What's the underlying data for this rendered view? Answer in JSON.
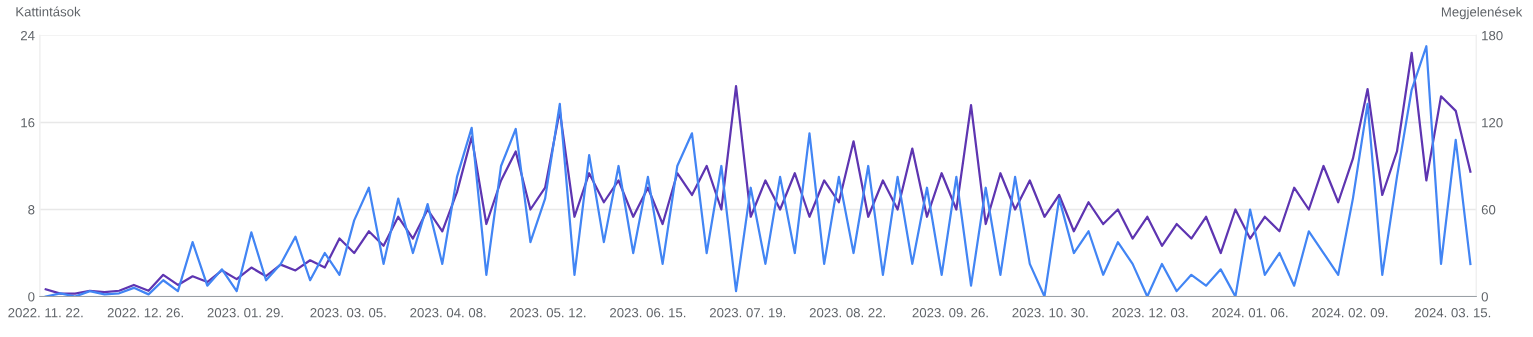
{
  "chart_data": {
    "type": "line",
    "ylabel": "Kattintások",
    "y2label": "Megjelenések",
    "x": [
      "2022-11-22",
      "2022-11-27",
      "2022-12-02",
      "2022-12-07",
      "2022-12-12",
      "2022-12-17",
      "2022-12-22",
      "2022-12-27",
      "2023-01-01",
      "2023-01-06",
      "2023-01-11",
      "2023-01-16",
      "2023-01-21",
      "2023-01-26",
      "2023-01-31",
      "2023-02-05",
      "2023-02-10",
      "2023-02-15",
      "2023-02-20",
      "2023-02-25",
      "2023-03-02",
      "2023-03-07",
      "2023-03-12",
      "2023-03-17",
      "2023-03-22",
      "2023-03-27",
      "2023-04-01",
      "2023-04-06",
      "2023-04-11",
      "2023-04-16",
      "2023-04-21",
      "2023-04-26",
      "2023-05-01",
      "2023-05-06",
      "2023-05-11",
      "2023-05-16",
      "2023-05-21",
      "2023-05-26",
      "2023-05-31",
      "2023-06-05",
      "2023-06-10",
      "2023-06-15",
      "2023-06-20",
      "2023-06-25",
      "2023-06-30",
      "2023-07-05",
      "2023-07-10",
      "2023-07-15",
      "2023-07-20",
      "2023-07-25",
      "2023-07-30",
      "2023-08-04",
      "2023-08-09",
      "2023-08-14",
      "2023-08-19",
      "2023-08-24",
      "2023-08-29",
      "2023-09-03",
      "2023-09-08",
      "2023-09-13",
      "2023-09-18",
      "2023-09-23",
      "2023-09-28",
      "2023-10-03",
      "2023-10-08",
      "2023-10-13",
      "2023-10-18",
      "2023-10-23",
      "2023-10-28",
      "2023-11-02",
      "2023-11-07",
      "2023-11-12",
      "2023-11-17",
      "2023-11-22",
      "2023-11-27",
      "2023-12-02",
      "2023-12-07",
      "2023-12-12",
      "2023-12-17",
      "2023-12-22",
      "2023-12-27",
      "2024-01-01",
      "2024-01-06",
      "2024-01-11",
      "2024-01-16",
      "2024-01-21",
      "2024-01-26",
      "2024-01-31",
      "2024-02-05",
      "2024-02-10",
      "2024-02-15",
      "2024-02-20",
      "2024-02-25",
      "2024-03-01",
      "2024-03-06",
      "2024-03-11",
      "2024-03-16",
      "2024-03-21"
    ],
    "series": [
      {
        "color": "#5e35b1",
        "axis": "y2",
        "values": [
          5,
          2,
          2,
          4,
          3,
          4,
          8,
          4,
          15,
          8,
          14,
          10,
          18,
          12,
          20,
          14,
          22,
          18,
          25,
          20,
          40,
          30,
          45,
          35,
          55,
          40,
          60,
          45,
          72,
          110,
          50,
          80,
          100,
          60,
          75,
          128,
          55,
          85,
          65,
          80,
          55,
          75,
          50,
          85,
          70,
          90,
          60,
          145,
          55,
          80,
          60,
          85,
          55,
          80,
          65,
          107,
          55,
          80,
          60,
          102,
          55,
          85,
          60,
          132,
          50,
          85,
          60,
          80,
          55,
          70,
          45,
          65,
          50,
          60,
          40,
          55,
          35,
          50,
          40,
          55,
          30,
          60,
          40,
          55,
          45,
          75,
          60,
          90,
          65,
          95,
          143,
          70,
          100,
          168,
          80,
          138,
          128,
          86
        ]
      },
      {
        "color": "#4285f4",
        "axis": "y",
        "values": [
          0,
          0.3,
          0,
          0.5,
          0.2,
          0.3,
          0.8,
          0.2,
          1.5,
          0.5,
          5,
          1,
          2.5,
          0.5,
          5.9,
          1.5,
          3,
          5.5,
          1.5,
          4,
          2,
          7,
          10,
          3,
          9,
          4,
          8.5,
          3,
          11,
          15.5,
          2,
          12,
          15.4,
          5,
          9,
          17.7,
          2,
          13,
          5,
          12,
          4,
          11,
          3,
          12,
          15,
          4,
          12,
          0.5,
          10,
          3,
          11,
          4,
          15,
          3,
          11,
          4,
          12,
          2,
          11,
          3,
          10,
          2,
          11,
          1,
          10,
          2,
          11,
          3,
          0,
          9,
          4,
          6,
          2,
          5,
          3,
          0,
          3,
          0.5,
          2,
          1,
          2.5,
          0,
          8,
          2,
          4,
          1,
          6,
          4,
          2,
          9,
          17.7,
          2,
          11,
          19,
          23,
          3,
          14.4,
          3
        ]
      }
    ],
    "xlim": [
      "2022-11-20",
      "2024-03-23"
    ],
    "xticks": [
      {
        "value": "2022-11-22",
        "label": "2022. 11. 22."
      },
      {
        "value": "2022-12-26",
        "label": "2022. 12. 26."
      },
      {
        "value": "2023-01-29",
        "label": "2023. 01. 29."
      },
      {
        "value": "2023-03-05",
        "label": "2023. 03. 05."
      },
      {
        "value": "2023-04-08",
        "label": "2023. 04. 08."
      },
      {
        "value": "2023-05-12",
        "label": "2023. 05. 12."
      },
      {
        "value": "2023-06-15",
        "label": "2023. 06. 15."
      },
      {
        "value": "2023-07-19",
        "label": "2023. 07. 19."
      },
      {
        "value": "2023-08-22",
        "label": "2023. 08. 22."
      },
      {
        "value": "2023-09-26",
        "label": "2023. 09. 26."
      },
      {
        "value": "2023-10-30",
        "label": "2023. 10. 30."
      },
      {
        "value": "2023-12-03",
        "label": "2023. 12. 03."
      },
      {
        "value": "2024-01-06",
        "label": "2024. 01. 06."
      },
      {
        "value": "2024-02-09",
        "label": "2024. 02. 09."
      },
      {
        "value": "2024-03-15",
        "label": "2024. 03. 15."
      }
    ],
    "ylim": [
      0,
      24
    ],
    "yticks": [
      0,
      8,
      16,
      24
    ],
    "y2lim": [
      0,
      180
    ],
    "y2ticks": [
      0,
      60,
      120,
      180
    ],
    "grid": "y",
    "legend": false
  }
}
